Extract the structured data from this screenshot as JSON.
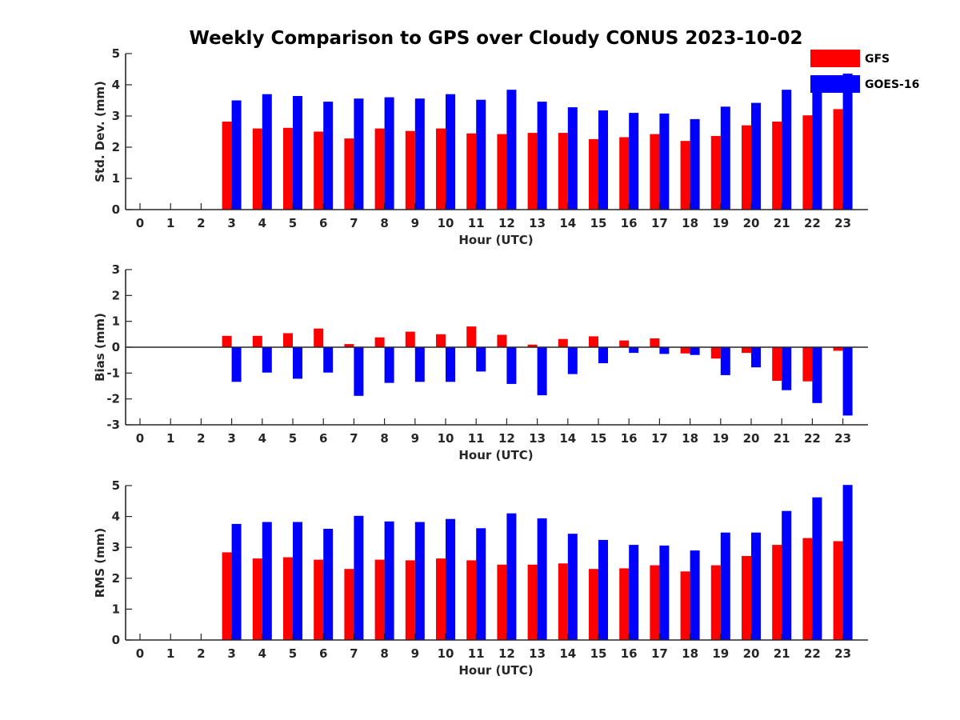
{
  "figure": {
    "title": "Weekly Comparison to GPS over Cloudy CONUS 2023-10-02"
  },
  "legend": [
    {
      "name": "GFS",
      "color": "#ff0000"
    },
    {
      "name": "GOES-16",
      "color": "#0000ff"
    }
  ],
  "chart_data": [
    {
      "type": "bar",
      "title": "",
      "xlabel": "Hour (UTC)",
      "ylabel": "Std. Dev. (mm)",
      "ylim": [
        0,
        5
      ],
      "yticks": [
        0,
        1,
        2,
        3,
        4,
        5
      ],
      "categories": [
        "0",
        "1",
        "2",
        "3",
        "4",
        "5",
        "6",
        "7",
        "8",
        "9",
        "10",
        "11",
        "12",
        "13",
        "14",
        "15",
        "16",
        "17",
        "18",
        "19",
        "20",
        "21",
        "22",
        "23"
      ],
      "series": [
        {
          "name": "GFS",
          "color": "#ff0000",
          "values": [
            null,
            null,
            null,
            2.82,
            2.6,
            2.62,
            2.5,
            2.28,
            2.6,
            2.52,
            2.6,
            2.44,
            2.42,
            2.46,
            2.46,
            2.26,
            2.32,
            2.42,
            2.2,
            2.36,
            2.7,
            2.82,
            3.02,
            3.22
          ]
        },
        {
          "name": "GOES-16",
          "color": "#0000ff",
          "values": [
            null,
            null,
            null,
            3.5,
            3.7,
            3.64,
            3.46,
            3.56,
            3.6,
            3.56,
            3.7,
            3.52,
            3.84,
            3.46,
            3.28,
            3.18,
            3.1,
            3.08,
            2.9,
            3.3,
            3.42,
            3.84,
            4.06,
            4.36
          ]
        }
      ],
      "legend": "top-right",
      "grid": false
    },
    {
      "type": "bar",
      "title": "",
      "xlabel": "Hour (UTC)",
      "ylabel": "Bias (mm)",
      "ylim": [
        -3,
        3
      ],
      "yticks": [
        -3,
        -2,
        -1,
        0,
        1,
        2,
        3
      ],
      "categories": [
        "0",
        "1",
        "2",
        "3",
        "4",
        "5",
        "6",
        "7",
        "8",
        "9",
        "10",
        "11",
        "12",
        "13",
        "14",
        "15",
        "16",
        "17",
        "18",
        "19",
        "20",
        "21",
        "22",
        "23"
      ],
      "series": [
        {
          "name": "GFS",
          "color": "#ff0000",
          "values": [
            null,
            null,
            null,
            0.44,
            0.44,
            0.54,
            0.72,
            0.12,
            0.38,
            0.6,
            0.5,
            0.8,
            0.48,
            0.1,
            0.32,
            0.42,
            0.26,
            0.34,
            -0.24,
            -0.44,
            -0.22,
            -1.3,
            -1.32,
            -0.14
          ]
        },
        {
          "name": "GOES-16",
          "color": "#0000ff",
          "values": [
            null,
            null,
            null,
            -1.34,
            -0.98,
            -1.22,
            -0.98,
            -1.88,
            -1.38,
            -1.34,
            -1.34,
            -0.94,
            -1.42,
            -1.86,
            -1.04,
            -0.62,
            -0.22,
            -0.26,
            -0.3,
            -1.08,
            -0.78,
            -1.66,
            -2.16,
            -2.64
          ]
        }
      ],
      "grid": false
    },
    {
      "type": "bar",
      "title": "",
      "xlabel": "Hour (UTC)",
      "ylabel": "RMS (mm)",
      "ylim": [
        0,
        5
      ],
      "yticks": [
        0,
        1,
        2,
        3,
        4,
        5
      ],
      "categories": [
        "0",
        "1",
        "2",
        "3",
        "4",
        "5",
        "6",
        "7",
        "8",
        "9",
        "10",
        "11",
        "12",
        "13",
        "14",
        "15",
        "16",
        "17",
        "18",
        "19",
        "20",
        "21",
        "22",
        "23"
      ],
      "series": [
        {
          "name": "GFS",
          "color": "#ff0000",
          "values": [
            null,
            null,
            null,
            2.84,
            2.64,
            2.68,
            2.6,
            2.3,
            2.6,
            2.58,
            2.64,
            2.58,
            2.44,
            2.44,
            2.48,
            2.3,
            2.32,
            2.42,
            2.22,
            2.42,
            2.72,
            3.08,
            3.3,
            3.2
          ]
        },
        {
          "name": "GOES-16",
          "color": "#0000ff",
          "values": [
            null,
            null,
            null,
            3.76,
            3.82,
            3.82,
            3.6,
            4.02,
            3.84,
            3.82,
            3.92,
            3.62,
            4.1,
            3.94,
            3.44,
            3.24,
            3.08,
            3.06,
            2.9,
            3.48,
            3.48,
            4.18,
            4.62,
            5.02
          ]
        }
      ],
      "grid": false
    }
  ]
}
